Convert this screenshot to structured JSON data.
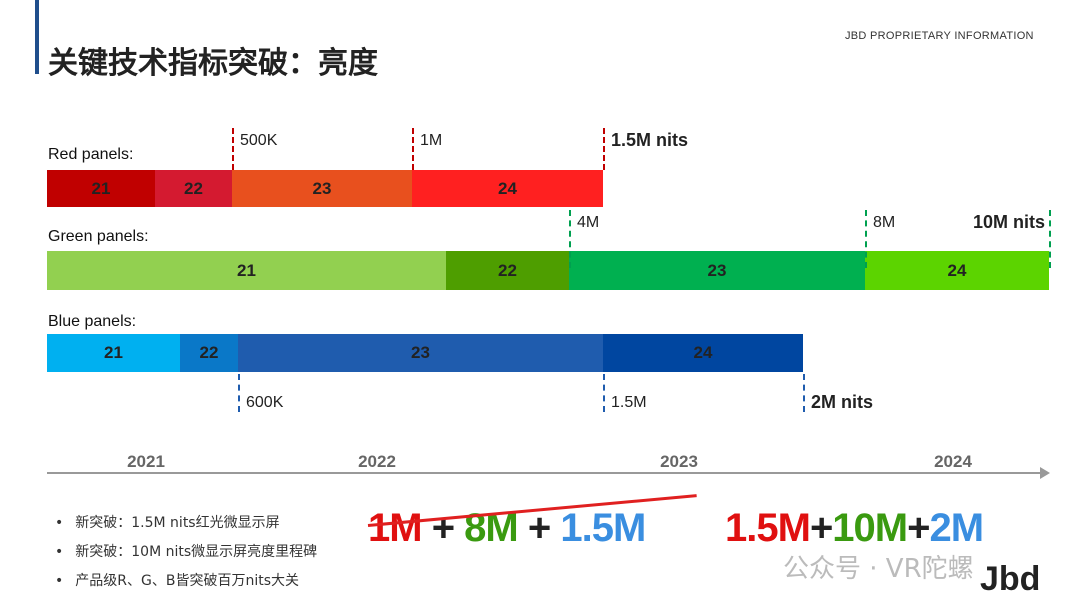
{
  "header": {
    "title": "关键技术指标突破：亮度",
    "proprietary": "JBD PROPRIETARY  INFORMATION"
  },
  "chart_data": {
    "type": "timeline-bar",
    "rows": [
      {
        "label": "Red panels:",
        "segments": [
          "21",
          "22",
          "23",
          "24"
        ],
        "colors": [
          "#c00000",
          "#d41a30",
          "#e8501e",
          "#ff2020"
        ],
        "milestones": [
          "500K",
          "1M",
          "1.5M nits"
        ],
        "marker_color": "#c00000"
      },
      {
        "label": "Green panels:",
        "segments": [
          "21",
          "22",
          "23",
          "24"
        ],
        "colors": [
          "#92d050",
          "#4e9e00",
          "#00b050",
          "#5cd400"
        ],
        "milestones": [
          "4M",
          "8M",
          "10M nits"
        ],
        "marker_color": "#00a050"
      },
      {
        "label": "Blue panels:",
        "segments": [
          "21",
          "22",
          "23",
          "24"
        ],
        "colors": [
          "#00b0f0",
          "#0a78c8",
          "#1f5cae",
          "#0046a0"
        ],
        "milestones": [
          "600K",
          "1.5M",
          "2M nits"
        ],
        "marker_color": "#1f5cae"
      }
    ],
    "years": [
      "2021",
      "2022",
      "2023",
      "2024"
    ]
  },
  "bullets": [
    "新突破：1.5M nits红光微显示屏",
    "新突破：10M nits微显示屏亮度里程碑",
    "产品级R、G、B皆突破百万nits大关"
  ],
  "old_combo": [
    {
      "t": "1M",
      "c": "#e01010"
    },
    {
      "t": " + ",
      "c": "#222"
    },
    {
      "t": "8M",
      "c": "#3a9a10"
    },
    {
      "t": " + ",
      "c": "#222"
    },
    {
      "t": "1.5M",
      "c": "#3a8ee0"
    }
  ],
  "new_combo": [
    {
      "t": "1.5M",
      "c": "#e01010"
    },
    {
      "t": "+",
      "c": "#222"
    },
    {
      "t": "10M",
      "c": "#3a9a10"
    },
    {
      "t": "+",
      "c": "#222"
    },
    {
      "t": "2M",
      "c": "#3a8ee0"
    }
  ],
  "watermark": "公众号 · VR陀螺",
  "logo": "Jbd"
}
